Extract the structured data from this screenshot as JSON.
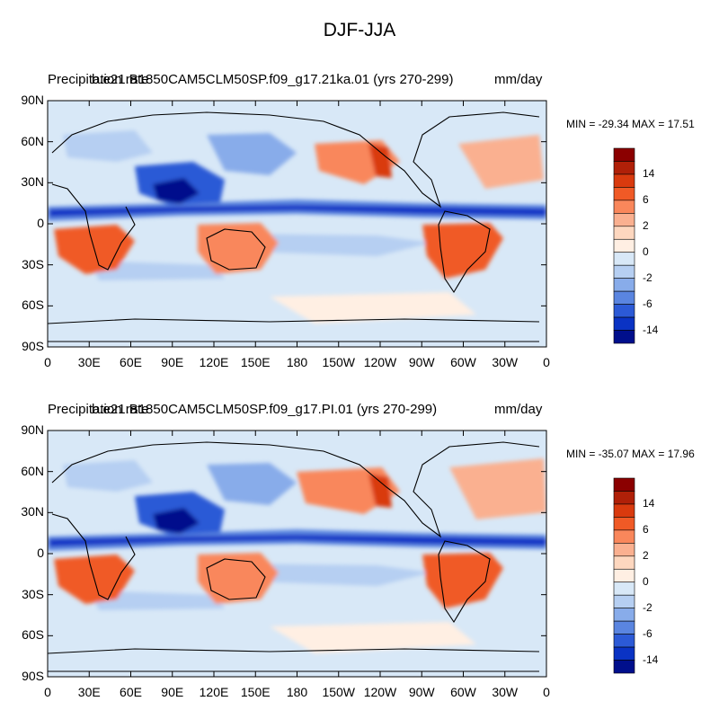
{
  "figure_title": "DJF-JJA",
  "chart_data": [
    {
      "type": "heatmap",
      "title_left": "Precipitation rate",
      "title_center": "b.e21.B1850CAM5CLM50SP.f09_g17.21ka.01 (yrs 270-299)",
      "units": "mm/day",
      "stats": "MIN = -29.34 MAX =  17.51",
      "y_ticks": [
        "90N",
        "60N",
        "30N",
        "0",
        "30S",
        "60S",
        "90S"
      ],
      "x_ticks": [
        "0",
        "30E",
        "60E",
        "90E",
        "120E",
        "150E",
        "180",
        "150W",
        "120W",
        "90W",
        "60W",
        "30W",
        "0"
      ],
      "colorbar_labels": [
        "14",
        "6",
        "2",
        "0",
        "-2",
        "-6",
        "-14"
      ],
      "colorbar_colors": [
        "#8b0000",
        "#b02008",
        "#d93a0e",
        "#f05a26",
        "#f9875b",
        "#fab090",
        "#fdd7bf",
        "#ffefe3",
        "#d8e8f7",
        "#b6cff2",
        "#88acea",
        "#5a85e0",
        "#2c5ad6",
        "#0a33c4",
        "#000f8c"
      ],
      "lat_range": [
        -90,
        90
      ],
      "lon_range": [
        0,
        360
      ]
    },
    {
      "type": "heatmap",
      "title_left": "Precipitation rate",
      "title_center": "b.e21.B1850CAM5CLM50SP.f09_g17.PI.01 (yrs 270-299)",
      "units": "mm/day",
      "stats": "MIN = -35.07 MAX =  17.96",
      "y_ticks": [
        "90N",
        "60N",
        "30N",
        "0",
        "30S",
        "60S",
        "90S"
      ],
      "x_ticks": [
        "0",
        "30E",
        "60E",
        "90E",
        "120E",
        "150E",
        "180",
        "150W",
        "120W",
        "90W",
        "60W",
        "30W",
        "0"
      ],
      "colorbar_labels": [
        "14",
        "6",
        "2",
        "0",
        "-2",
        "-6",
        "-14"
      ],
      "colorbar_colors": [
        "#8b0000",
        "#b02008",
        "#d93a0e",
        "#f05a26",
        "#f9875b",
        "#fab090",
        "#fdd7bf",
        "#ffefe3",
        "#d8e8f7",
        "#b6cff2",
        "#88acea",
        "#5a85e0",
        "#2c5ad6",
        "#0a33c4",
        "#000f8c"
      ],
      "lat_range": [
        -90,
        90
      ],
      "lon_range": [
        0,
        360
      ]
    }
  ]
}
